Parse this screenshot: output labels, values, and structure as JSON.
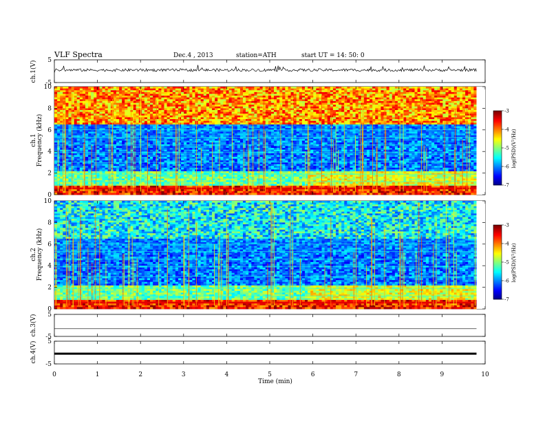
{
  "header": {
    "title": "VLF  Spectra",
    "date": "Dec.4  , 2013",
    "station": "station=ATH",
    "start": "start  UT =   14: 50: 0"
  },
  "colors": {
    "spectrogram_low": "#00007f",
    "spectrogram_high": "#b00000",
    "trace": "#000000"
  },
  "chart_data": [
    {
      "type": "line",
      "panel": "ch1_waveform",
      "ylabel": "ch.1(V)",
      "ylim": [
        -5,
        5
      ],
      "yticks": [
        "5",
        "-5"
      ],
      "x_range_min": [
        0,
        9.8
      ],
      "baseline_V": 0.5,
      "spike_amplitude_V": 3
    },
    {
      "type": "heatmap",
      "panel": "ch1_spectrogram",
      "ylabel": "Frequency (kHz)",
      "ylabel_channel": "ch.1",
      "ylim": [
        0,
        10
      ],
      "yticks": [
        "0",
        "2",
        "4",
        "6",
        "8",
        "10"
      ],
      "x_range_min": [
        0,
        9.8
      ],
      "colorbar": {
        "label": "log(PSD)(V²/Hz)",
        "range": [
          -7,
          -3
        ],
        "ticks": [
          "-3",
          "-4",
          "-5",
          "-6",
          "-7"
        ]
      }
    },
    {
      "type": "heatmap",
      "panel": "ch2_spectrogram",
      "ylabel": "Frequency (kHz)",
      "ylabel_channel": "ch.2",
      "ylim": [
        0,
        10
      ],
      "yticks": [
        "0",
        "2",
        "4",
        "6",
        "8",
        "10"
      ],
      "x_range_min": [
        0,
        9.8
      ],
      "colorbar": {
        "label": "log(PSD)(V²/Hz)",
        "range": [
          -7,
          -3
        ],
        "ticks": [
          "-3",
          "-4",
          "-5",
          "-6",
          "-7"
        ]
      }
    },
    {
      "type": "line",
      "panel": "ch3_waveform",
      "ylabel": "ch.3(V)",
      "ylim": [
        -5,
        5
      ],
      "yticks": [
        "5",
        "-5"
      ],
      "x_range_min": [
        0,
        9.8
      ],
      "baseline_V": -1.5
    },
    {
      "type": "line",
      "panel": "ch4_waveform",
      "ylabel": "ch.4(V)",
      "ylim": [
        -5,
        5
      ],
      "yticks": [
        "5",
        "-5"
      ],
      "x_range_min": [
        0,
        9.8
      ],
      "baseline_V": -0.5
    }
  ],
  "xaxis": {
    "label": "Time  (min)",
    "xlim": [
      0,
      10
    ],
    "ticks": [
      "0",
      "1",
      "2",
      "3",
      "4",
      "5",
      "6",
      "7",
      "8",
      "9",
      "10"
    ]
  }
}
